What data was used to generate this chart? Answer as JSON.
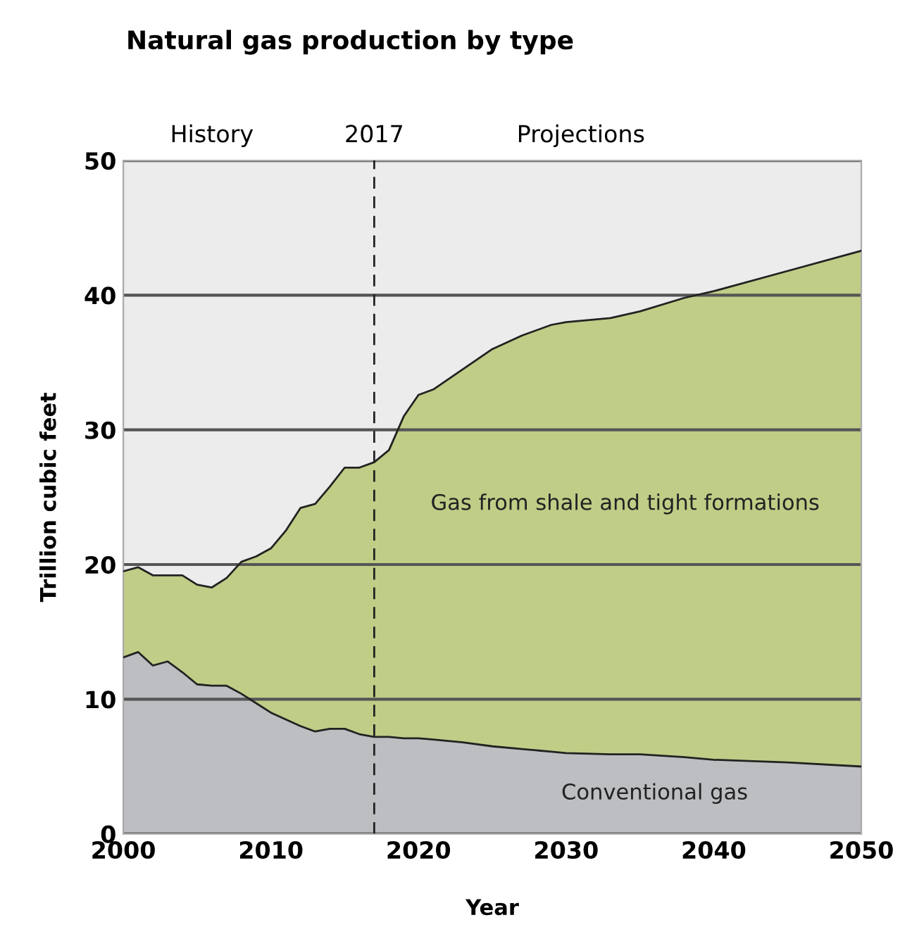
{
  "chart_data": {
    "type": "area",
    "title": "Natural gas production by type",
    "xlabel": "Year",
    "ylabel": "Trillion cubic feet",
    "stacked": true,
    "x": [
      2000,
      2001,
      2002,
      2003,
      2004,
      2005,
      2006,
      2007,
      2008,
      2009,
      2010,
      2011,
      2012,
      2013,
      2014,
      2015,
      2016,
      2017,
      2018,
      2019,
      2020,
      2021,
      2023,
      2025,
      2027,
      2029,
      2030,
      2033,
      2035,
      2038,
      2040,
      2045,
      2050
    ],
    "series": [
      {
        "name": "Conventional gas",
        "color": "#bdbec2",
        "values": [
          13.1,
          13.5,
          12.5,
          12.8,
          12.0,
          11.1,
          11.0,
          11.0,
          10.4,
          9.7,
          9.0,
          8.5,
          8.0,
          7.6,
          7.8,
          7.8,
          7.4,
          7.2,
          7.2,
          7.1,
          7.1,
          7.0,
          6.8,
          6.5,
          6.3,
          6.1,
          6.0,
          5.9,
          5.9,
          5.7,
          5.5,
          5.3,
          5.0
        ]
      },
      {
        "name": "Gas from shale and tight formations",
        "color": "#bfcd87",
        "values": [
          6.4,
          6.3,
          6.7,
          6.4,
          7.2,
          7.4,
          7.3,
          8.0,
          9.8,
          10.9,
          12.2,
          14.0,
          16.2,
          16.9,
          18.0,
          19.4,
          19.8,
          20.4,
          21.3,
          23.9,
          25.5,
          26.0,
          27.7,
          29.5,
          30.7,
          31.7,
          32.0,
          32.4,
          32.9,
          34.1,
          34.8,
          36.5,
          38.3
        ]
      }
    ],
    "xlim": [
      2000,
      2050
    ],
    "xticks": [
      2000,
      2010,
      2020,
      2030,
      2040,
      2050
    ],
    "ylim": [
      0,
      50
    ],
    "yticks": [
      0,
      10,
      20,
      30,
      40,
      50
    ],
    "grid": "y",
    "ref_lines": [
      {
        "axis": "x",
        "value": 2017,
        "label": "2017",
        "color": "#222222",
        "line_style": "dashed"
      }
    ],
    "annotations": [
      "History",
      "Projections"
    ]
  }
}
